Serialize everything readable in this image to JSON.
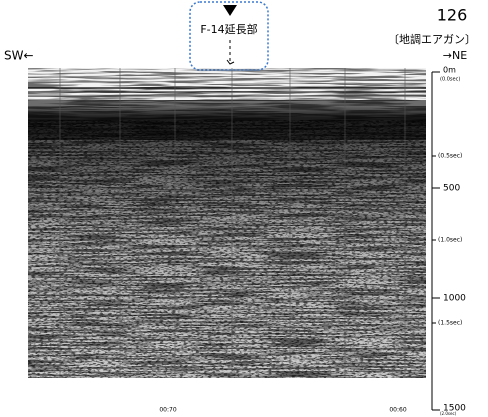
{
  "header": {
    "number": "126",
    "source": "〔地調エアガン〕",
    "direction_right": "→NE",
    "direction_left": "SW←"
  },
  "marker": {
    "label": "F-14延長部"
  },
  "scale": {
    "depth_labels": [
      "0m",
      "500",
      "1000",
      "1500"
    ],
    "time_labels": [
      "(0.0sec)",
      "(0.5sec)",
      "(1.0sec)",
      "(1.5sec)",
      "(2.0sec)"
    ]
  },
  "footer": {
    "time_left": "00:70",
    "time_right": "00:60"
  }
}
